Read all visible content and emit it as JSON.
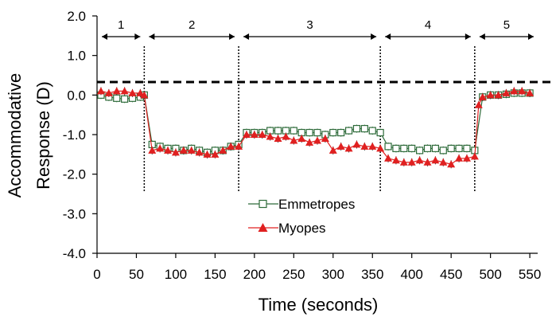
{
  "chart_data": {
    "type": "line",
    "title": "",
    "xlabel": "Time (seconds)",
    "ylabel_line1": "Accommodative",
    "ylabel_line2": "Response (D)",
    "xlim": [
      0,
      560
    ],
    "ylim": [
      -4.0,
      2.0
    ],
    "x_ticks": [
      "0",
      "50",
      "100",
      "150",
      "200",
      "250",
      "300",
      "350",
      "400",
      "450",
      "500",
      "550"
    ],
    "y_ticks": [
      "2.0",
      "1.0",
      "0.0",
      "-1.0",
      "-2.0",
      "-3.0",
      "-4.0"
    ],
    "reference_line_y": 0.33,
    "phase_boundaries": [
      60,
      180,
      360,
      480
    ],
    "phases": [
      {
        "label": "1",
        "start": 0,
        "end": 60
      },
      {
        "label": "2",
        "start": 60,
        "end": 180
      },
      {
        "label": "3",
        "start": 180,
        "end": 360
      },
      {
        "label": "4",
        "start": 360,
        "end": 480
      },
      {
        "label": "5",
        "start": 480,
        "end": 560
      }
    ],
    "legend_position": "center",
    "series": [
      {
        "name": "Emmetropes",
        "color": "#2e6b3a",
        "marker": "square-open",
        "x": [
          5,
          15,
          25,
          35,
          45,
          55,
          60,
          70,
          80,
          90,
          100,
          110,
          120,
          130,
          140,
          150,
          160,
          170,
          180,
          190,
          200,
          210,
          220,
          230,
          240,
          250,
          260,
          270,
          280,
          290,
          300,
          310,
          320,
          330,
          340,
          350,
          360,
          370,
          380,
          390,
          400,
          410,
          420,
          430,
          440,
          450,
          460,
          470,
          480,
          490,
          500,
          510,
          520,
          530,
          540,
          550
        ],
        "y": [
          0.0,
          -0.05,
          -0.08,
          -0.1,
          -0.08,
          -0.05,
          0.0,
          -1.25,
          -1.3,
          -1.35,
          -1.35,
          -1.4,
          -1.35,
          -1.4,
          -1.45,
          -1.4,
          -1.4,
          -1.3,
          -1.25,
          -0.95,
          -0.95,
          -0.95,
          -0.9,
          -0.9,
          -0.9,
          -0.9,
          -0.95,
          -0.95,
          -0.95,
          -1.0,
          -0.95,
          -0.95,
          -0.9,
          -0.85,
          -0.85,
          -0.9,
          -0.95,
          -1.3,
          -1.35,
          -1.35,
          -1.35,
          -1.4,
          -1.35,
          -1.35,
          -1.4,
          -1.35,
          -1.35,
          -1.35,
          -1.4,
          -0.05,
          0.0,
          0.0,
          0.02,
          0.05,
          0.05,
          0.05
        ]
      },
      {
        "name": "Myopes",
        "color": "#e02020",
        "marker": "triangle-filled",
        "x": [
          5,
          15,
          25,
          35,
          45,
          55,
          60,
          70,
          80,
          90,
          100,
          110,
          120,
          130,
          140,
          150,
          160,
          170,
          180,
          190,
          200,
          210,
          220,
          230,
          240,
          250,
          260,
          270,
          280,
          290,
          300,
          310,
          320,
          330,
          340,
          350,
          360,
          370,
          380,
          390,
          400,
          410,
          420,
          430,
          440,
          450,
          460,
          470,
          480,
          485,
          490,
          500,
          510,
          520,
          530,
          540,
          550
        ],
        "y": [
          0.1,
          0.05,
          0.1,
          0.1,
          0.05,
          0.05,
          0.0,
          -1.4,
          -1.35,
          -1.4,
          -1.45,
          -1.4,
          -1.4,
          -1.45,
          -1.5,
          -1.5,
          -1.4,
          -1.3,
          -1.3,
          -1.0,
          -1.0,
          -1.0,
          -1.05,
          -1.1,
          -1.05,
          -1.15,
          -1.1,
          -1.2,
          -1.15,
          -1.1,
          -1.4,
          -1.3,
          -1.35,
          -1.25,
          -1.3,
          -1.3,
          -1.35,
          -1.6,
          -1.65,
          -1.7,
          -1.7,
          -1.65,
          -1.7,
          -1.65,
          -1.7,
          -1.75,
          -1.6,
          -1.6,
          -1.55,
          -0.25,
          -0.05,
          0.0,
          0.0,
          0.05,
          0.1,
          0.1,
          0.05
        ]
      }
    ]
  }
}
